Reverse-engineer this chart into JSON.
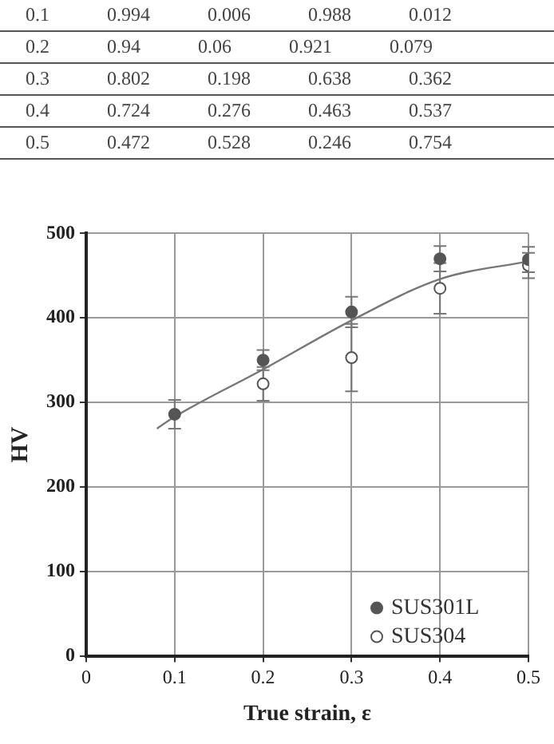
{
  "chart_data": [
    {
      "type": "other",
      "annotations": [
        "0.1 0.994 0.006 0.988 0.012",
        "0.2 0.94 0.06 0.921 0.079",
        "0.3 0.802 0.198 0.638 0.362",
        "0.4 0.724 0.276 0.463 0.537",
        "0.5 0.472 0.528 0.246 0.754"
      ]
    },
    {
      "type": "scatter",
      "xlabel": "True strain, ε",
      "ylabel": "HV",
      "xlim": [
        0,
        0.5
      ],
      "xticks": [
        0,
        0.1,
        0.2,
        0.3,
        0.4,
        0.5
      ],
      "ylim": [
        0,
        500
      ],
      "yticks": [
        0,
        100,
        200,
        300,
        400,
        500
      ],
      "grid": true,
      "legend": "bottom right",
      "series": [
        {
          "name": "SUS301L",
          "color": "#555555",
          "x": [
            0.1,
            0.2,
            0.3,
            0.4,
            0.5
          ],
          "values": [
            286,
            350,
            407,
            470,
            469
          ],
          "errors": [
            17,
            12,
            18,
            15,
            15
          ],
          "marker": "circle"
        },
        {
          "name": "SUS304",
          "color": "#ffffff",
          "x": [
            0.2,
            0.3,
            0.4,
            0.5
          ],
          "values": [
            322,
            353,
            435,
            462
          ],
          "errors": [
            20,
            40,
            30,
            15
          ],
          "marker": "circle"
        },
        {
          "type": "line",
          "color": "#777777",
          "x": [
            0.08,
            0.1,
            0.2,
            0.3,
            0.4,
            0.5
          ],
          "values": [
            269,
            283,
            339,
            397,
            446,
            467
          ]
        }
      ]
    }
  ]
}
